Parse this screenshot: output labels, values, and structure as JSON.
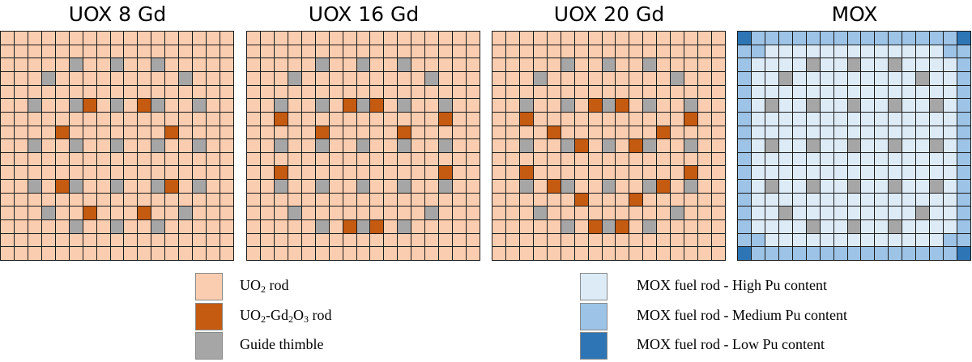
{
  "panels": [
    {
      "title": "UOX 8 Gd",
      "type": "uox",
      "gd_rods": [
        [
          5,
          6
        ],
        [
          5,
          10
        ],
        [
          7,
          4
        ],
        [
          7,
          12
        ],
        [
          11,
          4
        ],
        [
          11,
          12
        ],
        [
          13,
          6
        ],
        [
          13,
          10
        ]
      ]
    },
    {
      "title": "UOX 16 Gd",
      "type": "uox",
      "gd_rods": [
        [
          3,
          3
        ],
        [
          3,
          13
        ],
        [
          5,
          7
        ],
        [
          5,
          9
        ],
        [
          6,
          2
        ],
        [
          6,
          14
        ],
        [
          7,
          5
        ],
        [
          7,
          11
        ],
        [
          10,
          2
        ],
        [
          10,
          14
        ],
        [
          11,
          5
        ],
        [
          11,
          11
        ],
        [
          13,
          3
        ],
        [
          13,
          13
        ],
        [
          14,
          7
        ],
        [
          14,
          9
        ]
      ]
    },
    {
      "title": "UOX 20 Gd",
      "type": "uox",
      "gd_rods": [
        [
          3,
          3
        ],
        [
          3,
          13
        ],
        [
          5,
          7
        ],
        [
          5,
          9
        ],
        [
          6,
          2
        ],
        [
          6,
          14
        ],
        [
          7,
          4
        ],
        [
          7,
          12
        ],
        [
          8,
          6
        ],
        [
          8,
          10
        ],
        [
          10,
          2
        ],
        [
          10,
          14
        ],
        [
          11,
          4
        ],
        [
          11,
          12
        ],
        [
          12,
          6
        ],
        [
          12,
          10
        ],
        [
          13,
          3
        ],
        [
          13,
          13
        ],
        [
          14,
          7
        ],
        [
          14,
          9
        ]
      ]
    },
    {
      "title": "MOX",
      "type": "mox",
      "gd_rods": []
    }
  ],
  "assembly": {
    "size": 17,
    "guide_thimbles": [
      [
        2,
        5
      ],
      [
        2,
        8
      ],
      [
        2,
        11
      ],
      [
        3,
        3
      ],
      [
        3,
        13
      ],
      [
        5,
        2
      ],
      [
        5,
        5
      ],
      [
        5,
        8
      ],
      [
        5,
        11
      ],
      [
        5,
        14
      ],
      [
        8,
        2
      ],
      [
        8,
        5
      ],
      [
        8,
        8
      ],
      [
        8,
        11
      ],
      [
        8,
        14
      ],
      [
        11,
        2
      ],
      [
        11,
        5
      ],
      [
        11,
        8
      ],
      [
        11,
        11
      ],
      [
        11,
        14
      ],
      [
        13,
        3
      ],
      [
        13,
        13
      ],
      [
        14,
        5
      ],
      [
        14,
        8
      ],
      [
        14,
        11
      ]
    ]
  },
  "colors": {
    "uo2": "#fbcdb0",
    "gd": "#c55a11",
    "guide": "#a6a6a6",
    "mox_high": "#ddebf7",
    "mox_medium": "#9dc3e6",
    "mox_low": "#2e75b6"
  },
  "legend_left": {
    "uo2_main": "UO",
    "uo2_sub": "2",
    "uo2_suffix": " rod",
    "gd_main1": "UO",
    "gd_sub1": "2",
    "gd_main2": "-Gd",
    "gd_sub2": "2",
    "gd_main3": "O",
    "gd_sub3": "3",
    "gd_suffix": " rod",
    "guide": "Guide thimble"
  },
  "legend_right": {
    "high": "MOX fuel rod - High Pu content",
    "medium": "MOX fuel rod - Medium Pu content",
    "low": "MOX fuel rod - Low Pu content"
  }
}
